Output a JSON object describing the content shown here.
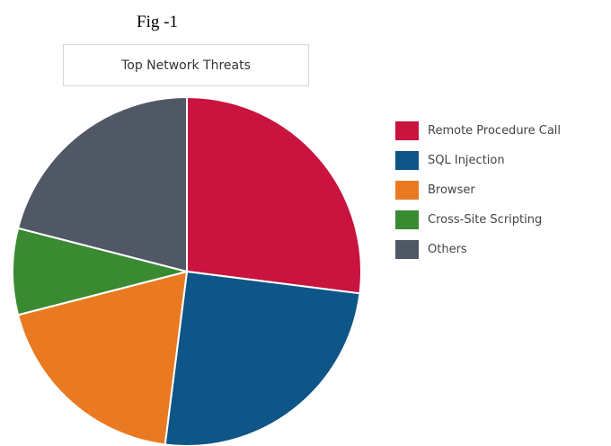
{
  "figure_label": "Fig -1",
  "chart_data": {
    "type": "pie",
    "title": "Top Network Threats",
    "legend_position": "right",
    "categories": [
      "Remote Procedure Call",
      "SQL Injection",
      "Browser",
      "Cross-Site Scripting",
      "Others"
    ],
    "values": [
      27,
      25,
      19,
      8,
      21
    ],
    "colors": [
      "#c8143f",
      "#0e5588",
      "#ea7a22",
      "#3a8a32",
      "#505866"
    ]
  }
}
